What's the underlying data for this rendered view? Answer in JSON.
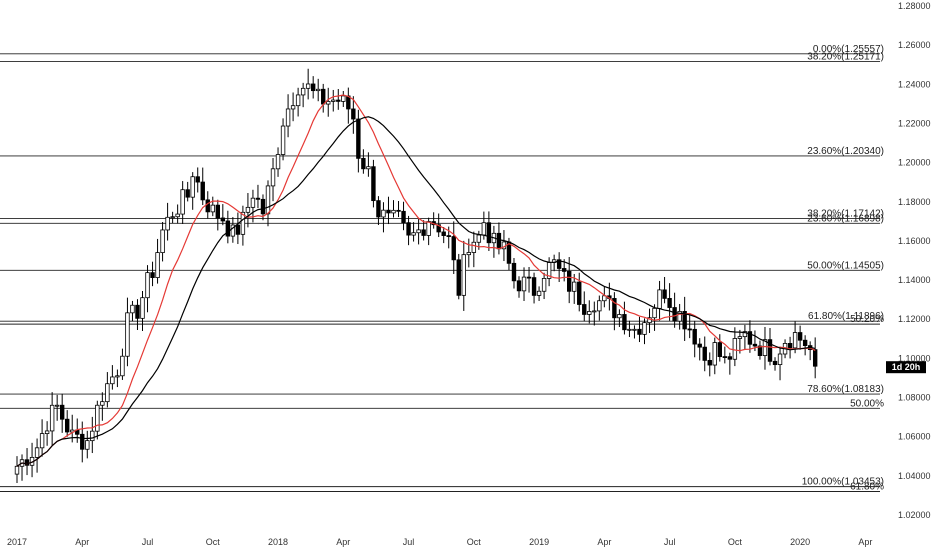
{
  "chart_data": {
    "type": "candlestick",
    "title": "",
    "xlabel": "",
    "ylabel": "",
    "ylim": [
      1.02,
      1.28
    ],
    "y_ticks": [
      "1.28000",
      "1.26000",
      "1.24000",
      "1.22000",
      "1.20000",
      "1.18000",
      "1.16000",
      "1.14000",
      "1.12000",
      "1.10000",
      "1.08000",
      "1.06000",
      "1.04000",
      "1.02000"
    ],
    "x_ticks": [
      {
        "label": "2017",
        "week": 0
      },
      {
        "label": "Apr",
        "week": 13
      },
      {
        "label": "Jul",
        "week": 26
      },
      {
        "label": "Oct",
        "week": 39
      },
      {
        "label": "2018",
        "week": 52
      },
      {
        "label": "Apr",
        "week": 65
      },
      {
        "label": "Jul",
        "week": 78
      },
      {
        "label": "Oct",
        "week": 91
      },
      {
        "label": "2019",
        "week": 104
      },
      {
        "label": "Apr",
        "week": 117
      },
      {
        "label": "Jul",
        "week": 130
      },
      {
        "label": "Oct",
        "week": 143
      },
      {
        "label": "2020",
        "week": 156
      },
      {
        "label": "Apr",
        "week": 169
      }
    ],
    "grid": false,
    "current_price_label": "1d 20h",
    "current_price": 1.0955,
    "up_color": "#ffffff",
    "down_color": "#000000",
    "fib_levels": [
      {
        "label": "0.00%(1.25557)",
        "price": 1.2556
      },
      {
        "label": "38.20%(1.25171)",
        "price": 1.2517
      },
      {
        "label": "23.60%(1.20340)",
        "price": 1.2034
      },
      {
        "label": "38.20%(1.17142)",
        "price": 1.1714
      },
      {
        "label": "23.60%(1.16898)",
        "price": 1.169
      },
      {
        "label": "50.00%(1.14505)",
        "price": 1.145
      },
      {
        "label": "61.80%(1.11896)",
        "price": 1.119
      },
      {
        "label": "50.20%",
        "price": 1.1175
      },
      {
        "label": "78.60%(1.08183)",
        "price": 1.0818
      },
      {
        "label": "50.00%",
        "price": 1.0745
      },
      {
        "label": "100.00%(1.03453)",
        "price": 1.0345
      },
      {
        "label": "61.80%",
        "price": 1.032
      }
    ],
    "series": [
      {
        "color": "#e53935",
        "period": 10
      },
      {
        "color": "#000000",
        "period": 20
      }
    ],
    "close_path": [
      [
        0,
        1.045
      ],
      [
        4,
        1.055
      ],
      [
        6,
        1.068
      ],
      [
        8,
        1.075
      ],
      [
        11,
        1.06
      ],
      [
        14,
        1.058
      ],
      [
        17,
        1.082
      ],
      [
        20,
        1.095
      ],
      [
        22,
        1.118
      ],
      [
        24,
        1.125
      ],
      [
        27,
        1.145
      ],
      [
        29,
        1.165
      ],
      [
        31,
        1.175
      ],
      [
        34,
        1.183
      ],
      [
        35,
        1.196
      ],
      [
        37,
        1.183
      ],
      [
        39,
        1.175
      ],
      [
        41,
        1.172
      ],
      [
        43,
        1.163
      ],
      [
        45,
        1.17
      ],
      [
        47,
        1.185
      ],
      [
        49,
        1.175
      ],
      [
        51,
        1.195
      ],
      [
        53,
        1.222
      ],
      [
        55,
        1.234
      ],
      [
        56,
        1.24
      ],
      [
        58,
        1.238
      ],
      [
        60,
        1.232
      ],
      [
        62,
        1.232
      ],
      [
        64,
        1.232
      ],
      [
        66,
        1.228
      ],
      [
        67,
        1.223
      ],
      [
        68,
        1.205
      ],
      [
        70,
        1.195
      ],
      [
        72,
        1.175
      ],
      [
        74,
        1.17
      ],
      [
        76,
        1.17
      ],
      [
        78,
        1.16
      ],
      [
        80,
        1.165
      ],
      [
        82,
        1.172
      ],
      [
        84,
        1.168
      ],
      [
        86,
        1.16
      ],
      [
        88,
        1.135
      ],
      [
        90,
        1.16
      ],
      [
        92,
        1.162
      ],
      [
        93,
        1.17
      ],
      [
        95,
        1.158
      ],
      [
        97,
        1.155
      ],
      [
        99,
        1.14
      ],
      [
        101,
        1.138
      ],
      [
        103,
        1.135
      ],
      [
        105,
        1.145
      ],
      [
        107,
        1.148
      ],
      [
        109,
        1.14
      ],
      [
        111,
        1.135
      ],
      [
        113,
        1.128
      ],
      [
        115,
        1.13
      ],
      [
        117,
        1.128
      ],
      [
        119,
        1.125
      ],
      [
        121,
        1.12
      ],
      [
        123,
        1.115
      ],
      [
        125,
        1.12
      ],
      [
        127,
        1.128
      ],
      [
        129,
        1.135
      ],
      [
        131,
        1.125
      ],
      [
        133,
        1.12
      ],
      [
        135,
        1.112
      ],
      [
        137,
        1.1
      ],
      [
        139,
        1.105
      ],
      [
        141,
        1.098
      ],
      [
        143,
        1.105
      ],
      [
        145,
        1.112
      ],
      [
        147,
        1.108
      ],
      [
        149,
        1.105
      ],
      [
        151,
        1.102
      ],
      [
        153,
        1.11
      ],
      [
        155,
        1.112
      ],
      [
        157,
        1.108
      ],
      [
        158,
        1.104
      ],
      [
        159,
        1.096
      ]
    ]
  }
}
